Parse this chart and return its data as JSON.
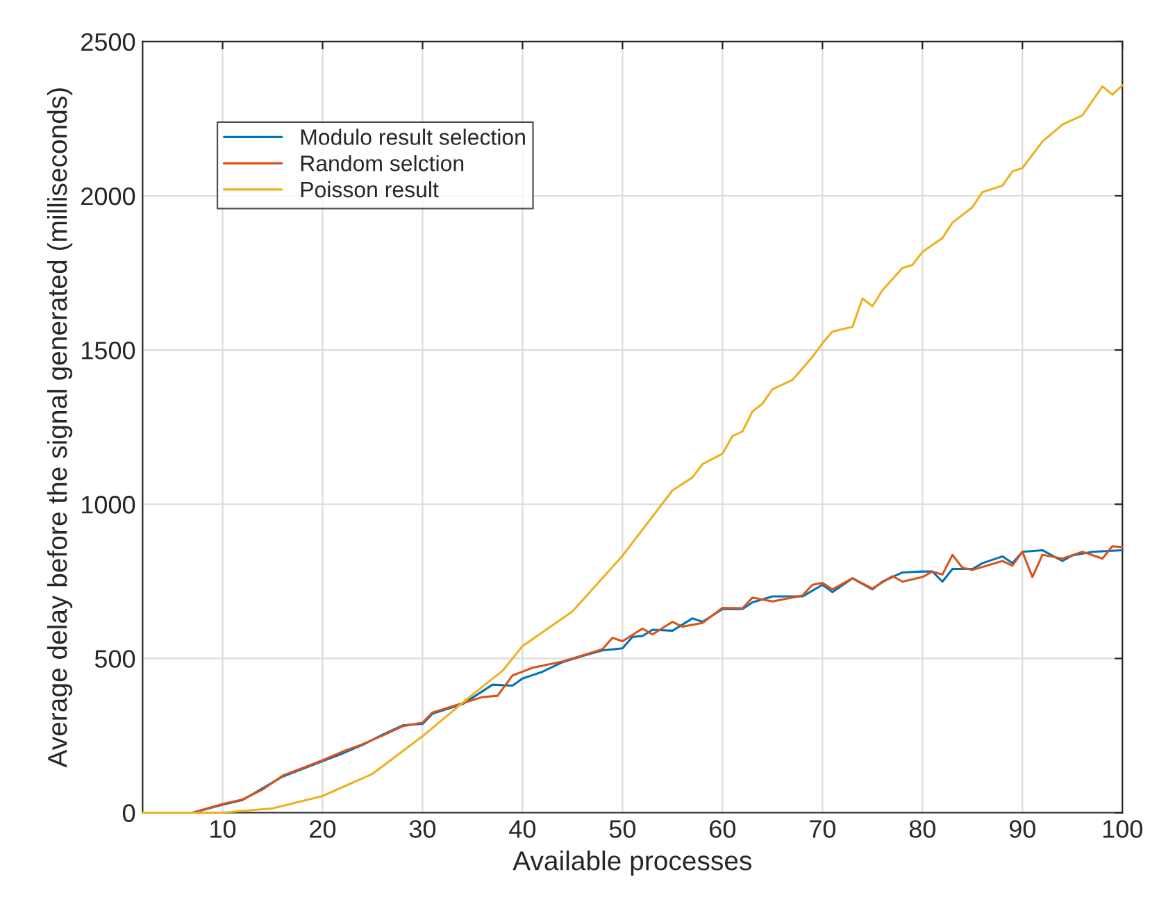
{
  "chart_data": {
    "type": "line",
    "xlabel": "Available processes",
    "ylabel": "Average delay before the signal generated (milliseconds)",
    "xlim": [
      2,
      100
    ],
    "ylim": [
      0,
      2500
    ],
    "xticks": [
      10,
      20,
      30,
      40,
      50,
      60,
      70,
      80,
      90,
      100
    ],
    "yticks": [
      0,
      500,
      1000,
      1500,
      2000,
      2500
    ],
    "grid": true,
    "legend": "top left",
    "line_style": "solid",
    "marker": "none",
    "series": [
      {
        "name": "Modulo result selection",
        "color": "#0072bd",
        "x": [
          2,
          5,
          7,
          10,
          12,
          14,
          16,
          20,
          22,
          24,
          26,
          28,
          30,
          31,
          34,
          37,
          39,
          40,
          42,
          44,
          46,
          48,
          50,
          51,
          52,
          53,
          55,
          57,
          58,
          60,
          62,
          63,
          65,
          68,
          70,
          71,
          73,
          75,
          76,
          78,
          80,
          81,
          82,
          83,
          85,
          86,
          88,
          89,
          90,
          92,
          94,
          95,
          97,
          100
        ],
        "values": [
          0,
          0,
          0,
          26,
          41,
          79,
          117,
          167,
          192,
          220,
          253,
          283,
          288,
          321,
          352,
          415,
          412,
          435,
          457,
          488,
          508,
          526,
          533,
          570,
          573,
          593,
          590,
          630,
          619,
          660,
          660,
          682,
          701,
          701,
          739,
          715,
          760,
          724,
          749,
          779,
          782,
          782,
          749,
          790,
          790,
          809,
          831,
          809,
          846,
          851,
          816,
          834,
          846,
          851
        ]
      },
      {
        "name": "Random selction",
        "color": "#d95319",
        "x": [
          2,
          5,
          7,
          10,
          12,
          14,
          16,
          20,
          22,
          24,
          26,
          28,
          30,
          31,
          34,
          36,
          37.5,
          39,
          41,
          44,
          46,
          48,
          49,
          50,
          52,
          53,
          55,
          56,
          58,
          60,
          62,
          63,
          65,
          68,
          69,
          70,
          71,
          73,
          75,
          77,
          78,
          80,
          81,
          82,
          83,
          84,
          85,
          88,
          89,
          90,
          91,
          92,
          94,
          96,
          98,
          99,
          100
        ],
        "values": [
          0,
          0,
          0,
          28,
          43,
          75,
          120,
          170,
          198,
          222,
          250,
          280,
          292,
          325,
          355,
          375,
          379,
          445,
          470,
          490,
          510,
          530,
          567,
          556,
          597,
          578,
          619,
          603,
          615,
          664,
          663,
          697,
          685,
          704,
          739,
          745,
          724,
          760,
          727,
          767,
          749,
          764,
          782,
          772,
          836,
          794,
          787,
          816,
          801,
          846,
          764,
          836,
          824,
          846,
          824,
          864,
          861
        ]
      },
      {
        "name": "Poisson result",
        "color": "#edb120",
        "x": [
          2,
          5,
          8,
          10,
          15,
          20,
          25,
          30,
          35,
          38,
          40,
          45,
          50,
          55,
          57,
          58,
          60,
          61,
          62,
          63,
          64,
          65,
          67,
          69,
          70,
          71,
          73,
          74,
          75,
          76,
          78,
          79,
          80,
          82,
          83,
          85,
          86,
          88,
          89,
          90,
          92,
          94,
          96,
          98,
          99,
          100
        ],
        "values": [
          0,
          0,
          0,
          0,
          14,
          54,
          126,
          248,
          383,
          460,
          540,
          653,
          833,
          1045,
          1087,
          1130,
          1164,
          1221,
          1236,
          1301,
          1326,
          1373,
          1403,
          1478,
          1522,
          1560,
          1575,
          1667,
          1642,
          1694,
          1766,
          1776,
          1818,
          1863,
          1913,
          1963,
          2012,
          2033,
          2079,
          2090,
          2176,
          2231,
          2261,
          2355,
          2328,
          2358
        ]
      }
    ]
  }
}
